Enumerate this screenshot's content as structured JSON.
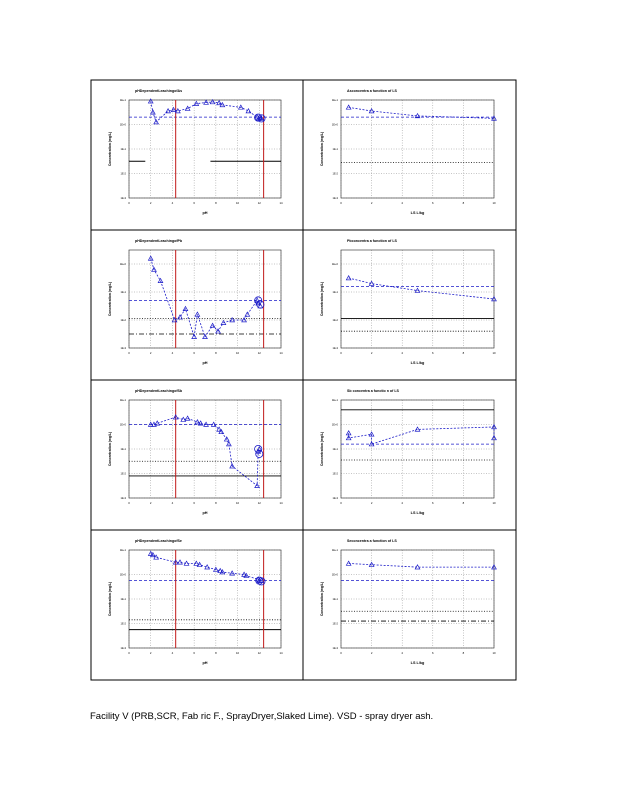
{
  "caption": "Facility V (PRB,SCR, Fab ric F., SprayDryer,Slaked Lime). VSD - spray dryer ash.",
  "colors": {
    "data": "#1c1cc8",
    "ph_line": "#c01818",
    "grid": "#8c8c8c",
    "border": "#000000"
  },
  "chart_data": [
    {
      "id": "ph-a",
      "type": "scatter",
      "title": "pHDependentLeachingofAs",
      "xlabel": "pH",
      "ylabel": "Concentration (mg/L)",
      "xlim": [
        0,
        14
      ],
      "ylim": [
        -3,
        1
      ],
      "log_y": true,
      "x_ticks": [
        0,
        2,
        4,
        6,
        8,
        10,
        12,
        14
      ],
      "y_ticks": [
        -3,
        -2,
        -1,
        0,
        1
      ],
      "ph_lines": [
        4.3,
        12.4
      ],
      "series": [
        {
          "name": "eluate",
          "marker": "triangle",
          "x": [
            2.0,
            2.2,
            2.5,
            3.6,
            4.1,
            4.5,
            5.4,
            6.2,
            7.1,
            7.7,
            8.3,
            8.6,
            10.3,
            11.0,
            11.8,
            11.95,
            12.2,
            12.15
          ],
          "y": [
            0.95,
            0.5,
            0.1,
            0.55,
            0.6,
            0.55,
            0.65,
            0.85,
            0.9,
            0.92,
            0.88,
            0.8,
            0.7,
            0.55,
            0.3,
            0.25,
            0.25,
            0.28
          ]
        }
      ],
      "reference_lines": [
        {
          "style": "dash",
          "y": 0.3,
          "x_range": [
            0,
            14
          ]
        },
        {
          "style": "solid",
          "y": -1.5,
          "x_range": [
            0,
            1.5
          ]
        },
        {
          "style": "solid",
          "y": -1.5,
          "x_range": [
            7.5,
            14
          ]
        }
      ],
      "circled_points": [
        {
          "x": 11.9,
          "y": 0.28
        },
        {
          "x": 12.2,
          "y": 0.25
        }
      ]
    },
    {
      "id": "ls-a",
      "type": "scatter",
      "title": "Asconcentra a function of LS",
      "xlabel": "LS L/kg",
      "ylabel": "Concentration (mg/L)",
      "xlim": [
        0,
        10
      ],
      "ylim": [
        -3,
        1
      ],
      "log_y": true,
      "x_ticks": [
        0,
        2,
        4,
        6,
        8,
        10
      ],
      "y_ticks": [
        -3,
        -2,
        -1,
        0,
        1
      ],
      "series": [
        {
          "name": "eluate",
          "marker": "triangle",
          "x": [
            0.5,
            2,
            5,
            10
          ],
          "y": [
            0.7,
            0.55,
            0.35,
            0.25
          ]
        }
      ],
      "reference_lines": [
        {
          "style": "dash",
          "y": 0.3
        },
        {
          "style": "dot",
          "y": -1.55
        }
      ]
    },
    {
      "id": "ph-b",
      "type": "scatter",
      "title": "pHDependentLeachingofPb",
      "xlabel": "pH",
      "ylabel": "Concentration (mg/L)",
      "xlim": [
        0,
        14
      ],
      "ylim": [
        -3,
        0.5
      ],
      "log_y": true,
      "x_ticks": [
        0,
        2,
        4,
        6,
        8,
        10,
        12,
        14
      ],
      "y_ticks": [
        -3,
        -2,
        -1,
        0
      ],
      "ph_lines": [
        4.3,
        12.4
      ],
      "series": [
        {
          "name": "eluate",
          "marker": "triangle",
          "x": [
            2.0,
            2.3,
            2.9,
            4.2,
            4.7,
            5.2,
            6.0,
            6.3,
            7.0,
            7.7,
            8.2,
            8.7,
            9.5,
            10.6,
            10.9,
            11.8,
            11.9,
            12.1
          ],
          "y": [
            0.2,
            -0.2,
            -0.6,
            -2.0,
            -1.9,
            -1.6,
            -2.6,
            -1.8,
            -2.6,
            -2.2,
            -2.4,
            -2.1,
            -2.0,
            -2.0,
            -1.8,
            -1.3,
            -1.4,
            -1.5
          ]
        }
      ],
      "reference_lines": [
        {
          "style": "dash",
          "y": -1.3
        },
        {
          "style": "dot",
          "y": -1.95
        },
        {
          "style": "dashdot",
          "y": -2.5
        }
      ],
      "circled_points": [
        {
          "x": 11.9,
          "y": -1.3
        },
        {
          "x": 12.1,
          "y": -1.45
        }
      ]
    },
    {
      "id": "ls-b",
      "type": "scatter",
      "title": "Pbconcentra a function of LS",
      "xlabel": "LS L/kg",
      "ylabel": "Concentration (mg/L)",
      "xlim": [
        0,
        10
      ],
      "ylim": [
        -3,
        0.5
      ],
      "log_y": true,
      "x_ticks": [
        0,
        2,
        4,
        6,
        8,
        10
      ],
      "y_ticks": [
        -3,
        -2,
        -1,
        0
      ],
      "series": [
        {
          "name": "eluate",
          "marker": "triangle",
          "x": [
            0.5,
            2,
            5,
            10
          ],
          "y": [
            -0.5,
            -0.7,
            -0.95,
            -1.25
          ]
        }
      ],
      "reference_lines": [
        {
          "style": "dash",
          "y": -0.8
        },
        {
          "style": "solid",
          "y": -1.95
        },
        {
          "style": "dot",
          "y": -2.4
        }
      ]
    },
    {
      "id": "ph-c",
      "type": "scatter",
      "title": "pHDependentLeachingofSb",
      "xlabel": "pH",
      "ylabel": "Concentration (mg/L)",
      "xlim": [
        0,
        14
      ],
      "ylim": [
        -3,
        1
      ],
      "log_y": true,
      "x_ticks": [
        0,
        2,
        4,
        6,
        8,
        10,
        12,
        14
      ],
      "y_ticks": [
        -3,
        -2,
        -1,
        0,
        1
      ],
      "ph_lines": [
        4.3,
        12.4
      ],
      "series": [
        {
          "name": "eluate",
          "marker": "triangle",
          "x": [
            2.0,
            2.3,
            2.6,
            4.3,
            5.0,
            5.4,
            6.3,
            6.6,
            7.1,
            7.8,
            8.3,
            8.5,
            9.0,
            9.2,
            9.5,
            11.8,
            11.9,
            12.0
          ],
          "y": [
            0.0,
            0.0,
            0.05,
            0.3,
            0.2,
            0.25,
            0.1,
            0.05,
            0.0,
            0.0,
            -0.2,
            -0.3,
            -0.6,
            -0.8,
            -1.7,
            -2.5,
            -1.1,
            -1.0
          ]
        }
      ],
      "reference_lines": [
        {
          "style": "dash",
          "y": 0.0
        },
        {
          "style": "dot",
          "y": -1.5
        },
        {
          "style": "solid",
          "y": -2.1
        }
      ],
      "circled_points": [
        {
          "x": 11.9,
          "y": -1.0
        },
        {
          "x": 12.0,
          "y": -1.2
        }
      ]
    },
    {
      "id": "ls-c",
      "type": "scatter",
      "title": "Sb concentra a functio n of LS",
      "xlabel": "LS L/kg",
      "ylabel": "Concentration (mg/L)",
      "xlim": [
        0,
        10
      ],
      "ylim": [
        -3,
        1
      ],
      "log_y": true,
      "x_ticks": [
        0,
        2,
        4,
        6,
        8,
        10
      ],
      "y_ticks": [
        -3,
        -2,
        -1,
        0,
        1
      ],
      "series": [
        {
          "name": "eluate",
          "marker": "triangle",
          "x": [
            0.5,
            0.5,
            2,
            2,
            5,
            10,
            10
          ],
          "y": [
            -0.35,
            -0.55,
            -0.4,
            -0.8,
            -0.2,
            -0.1,
            -0.55
          ]
        }
      ],
      "reference_lines": [
        {
          "style": "solid",
          "y": 0.6
        },
        {
          "style": "dash",
          "y": -0.8
        },
        {
          "style": "dot",
          "y": -1.45
        }
      ]
    },
    {
      "id": "ph-d",
      "type": "scatter",
      "title": "pHDependentLeachingofSe",
      "xlabel": "pH",
      "ylabel": "Concentration (mg/L)",
      "xlim": [
        0,
        14
      ],
      "ylim": [
        -3,
        1
      ],
      "log_y": true,
      "x_ticks": [
        0,
        2,
        4,
        6,
        8,
        10,
        12,
        14
      ],
      "y_ticks": [
        -3,
        -2,
        -1,
        0,
        1
      ],
      "ph_lines": [
        4.3,
        12.4
      ],
      "series": [
        {
          "name": "eluate",
          "marker": "triangle",
          "x": [
            2.0,
            2.2,
            2.5,
            4.3,
            4.7,
            5.3,
            6.2,
            6.5,
            7.2,
            8.0,
            8.4,
            8.6,
            9.5,
            10.6,
            10.8,
            11.9,
            12.0,
            12.2
          ],
          "y": [
            0.85,
            0.8,
            0.7,
            0.5,
            0.5,
            0.45,
            0.45,
            0.4,
            0.3,
            0.2,
            0.15,
            0.1,
            0.05,
            0.0,
            -0.05,
            -0.2,
            -0.25,
            -0.25
          ]
        }
      ],
      "reference_lines": [
        {
          "style": "dash",
          "y": -0.25
        },
        {
          "style": "dot",
          "y": -1.85
        },
        {
          "style": "solid",
          "y": -2.25
        }
      ],
      "circled_points": [
        {
          "x": 12.0,
          "y": -0.25
        },
        {
          "x": 12.2,
          "y": -0.28
        }
      ]
    },
    {
      "id": "ls-d",
      "type": "scatter",
      "title": "Seconcentra a function of LS",
      "xlabel": "LS L/kg",
      "ylabel": "Concentration (mg/L)",
      "xlim": [
        0,
        10
      ],
      "ylim": [
        -3,
        1
      ],
      "log_y": true,
      "x_ticks": [
        0,
        2,
        4,
        6,
        8,
        10
      ],
      "y_ticks": [
        -3,
        -2,
        -1,
        0,
        1
      ],
      "series": [
        {
          "name": "eluate",
          "marker": "triangle",
          "x": [
            0.5,
            2,
            5,
            10
          ],
          "y": [
            0.45,
            0.4,
            0.3,
            0.3
          ]
        }
      ],
      "reference_lines": [
        {
          "style": "dash",
          "y": -0.25
        },
        {
          "style": "dot",
          "y": -1.5
        },
        {
          "style": "dashdot",
          "y": -1.9
        }
      ]
    }
  ]
}
